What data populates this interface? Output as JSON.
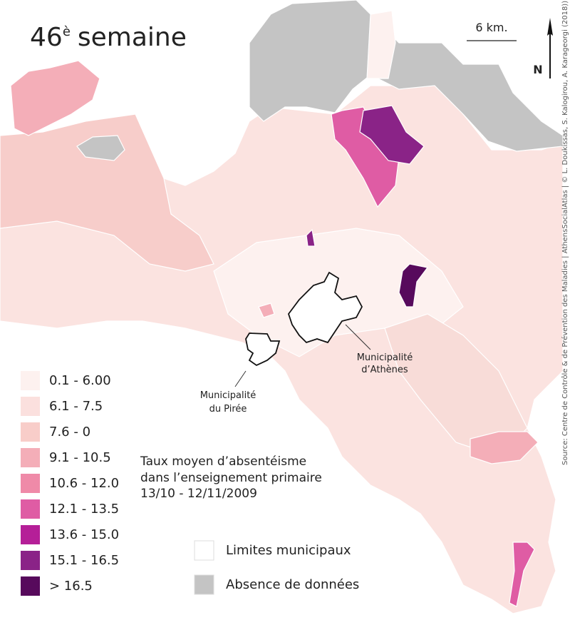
{
  "title": {
    "number": "46",
    "sup": "è",
    "word": "semaine"
  },
  "scale": "6 km.",
  "north": "N",
  "source": "Source: Centre de Contrôle & de Prévention des Maladies | AthensSocialAtlas | © L. Doukissas, S. Kalogirou, A. Karageorgi (2018))",
  "places": {
    "athens": [
      "Municipalité",
      "d’Athènes"
    ],
    "piraeus": [
      "Municipalité",
      "du Pirée"
    ]
  },
  "description": [
    "Taux moyen d’absentéisme",
    "dans l’enseignement primaire",
    "13/10 - 12/11/2009"
  ],
  "legend": {
    "classes": [
      {
        "label": "0.1 - 6.00",
        "color": "#fdf1ef"
      },
      {
        "label": "6.1 - 7.5",
        "color": "#fbe0de"
      },
      {
        "label": "7.6 - 0",
        "color": "#f8cdc9"
      },
      {
        "label": "9.1 - 10.5",
        "color": "#f4aeb8"
      },
      {
        "label": "10.6 - 12.0",
        "color": "#ef8aa8"
      },
      {
        "label": "12.1 - 13.5",
        "color": "#df5ca4"
      },
      {
        "label": "13.6 - 15.0",
        "color": "#b51f98"
      },
      {
        "label": "15.1 - 16.5",
        "color": "#8a2387"
      },
      {
        "label": "> 16.5",
        "color": "#570a5c"
      }
    ],
    "limits": {
      "label": "Limites municipaux",
      "color": "#ffffff"
    },
    "nodata": {
      "label": "Absence de données",
      "color": "#c4c4c4"
    }
  }
}
